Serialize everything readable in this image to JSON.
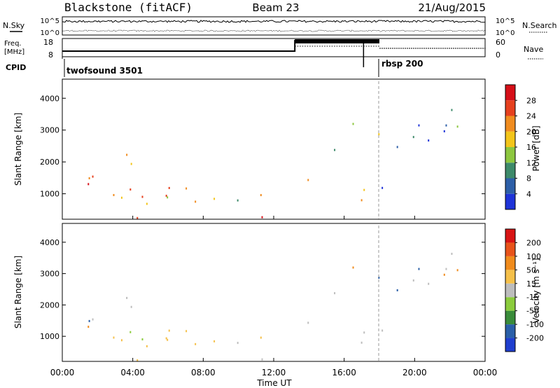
{
  "header": {
    "station": "Blackstone (fitACF)",
    "beam": "Beam 23",
    "date": "21/Aug/2015"
  },
  "top_panel": {
    "left_label": "N.Sky",
    "right_label": "N.Search",
    "left_ticks": [
      "10^5",
      "10^0"
    ],
    "right_ticks": [
      "10^5",
      "10^0"
    ]
  },
  "freq_panel": {
    "left_label_1": "Freq.",
    "left_label_2": "[MHz]",
    "right_label": "Nave",
    "left_ticks": [
      "18",
      "8"
    ],
    "right_ticks": [
      "60",
      "0"
    ]
  },
  "cpid_panel": {
    "label": "CPID",
    "modes": [
      "twofsound 3501",
      "rbsp 200"
    ]
  },
  "chart_data": [
    {
      "type": "heatmap",
      "quantity": "Power",
      "ylabel": "Slant Range [km]",
      "xlabel": "",
      "colorbar_label": "Power [dB]",
      "colorbar_ticks": [
        4,
        8,
        12,
        16,
        20,
        24,
        28
      ],
      "colors": [
        "#1f34d8",
        "#2d5fa8",
        "#3d8a6a",
        "#8dc73f",
        "#f3c51a",
        "#f08c1f",
        "#e6401e",
        "#d60f18"
      ],
      "ylim": [
        200,
        4600
      ],
      "yticks": [
        1000,
        2000,
        3000,
        4000
      ],
      "xlim_hours": [
        0,
        24
      ],
      "xticks": [
        "00:00",
        "04:00",
        "08:00",
        "12:00",
        "16:00",
        "20:00",
        "00:00"
      ]
    },
    {
      "type": "heatmap",
      "quantity": "Velocity",
      "ylabel": "Slant Range [km]",
      "xlabel": "Time UT",
      "colorbar_label": "Velocity [m s⁻¹]",
      "colorbar_ticks": [
        200,
        100,
        50,
        15,
        -15,
        -50,
        -100,
        -200
      ],
      "colors": [
        "#1f3ecf",
        "#2a5fa8",
        "#3a8c3a",
        "#8bcc3c",
        "#bdbdbd",
        "#f5c04a",
        "#f08b1c",
        "#e8531a",
        "#d81414"
      ],
      "ylim": [
        200,
        4600
      ],
      "yticks": [
        1000,
        2000,
        3000,
        4000
      ],
      "xlim_hours": [
        0,
        24
      ],
      "xticks": [
        "00:00",
        "04:00",
        "08:00",
        "12:00",
        "16:00",
        "20:00",
        "00:00"
      ]
    }
  ]
}
